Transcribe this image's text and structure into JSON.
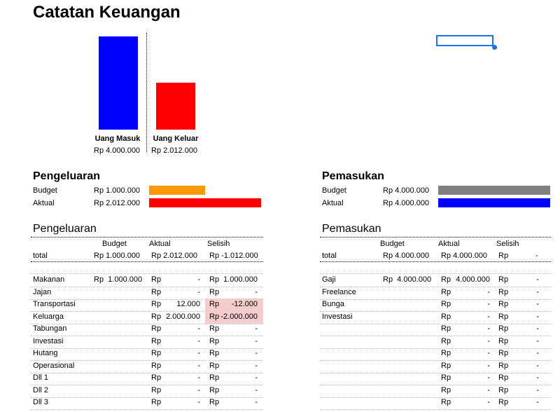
{
  "title": "Catatan Keuangan",
  "colors": {
    "uang_masuk": "#0000ff",
    "uang_keluar": "#ff0000",
    "budget_pengeluaran": "#ff9900",
    "aktual_pengeluaran": "#ff0000",
    "budget_pemasukan": "#808080",
    "aktual_pemasukan": "#0000ff",
    "negative_fill": "#f4cccc",
    "selection": "#1a73e8"
  },
  "summary": {
    "masuk_label": "Uang Masuk",
    "masuk_value": "Rp  4.000.000",
    "keluar_label": "Uang Keluar",
    "keluar_value": "Rp  2.012.000"
  },
  "chart_data": {
    "type": "bar",
    "categories": [
      "Uang Masuk",
      "Uang Keluar"
    ],
    "values": [
      4000000,
      2012000
    ]
  },
  "pengeluaran_summary": {
    "title": "Pengeluaran",
    "budget_label": "Budget",
    "budget_value": "Rp  1.000.000",
    "aktual_label": "Aktual",
    "aktual_value": "Rp  2.012.000",
    "budget_amount": 1000000,
    "aktual_amount": 2012000
  },
  "pemasukan_summary": {
    "title": "Pemasukan",
    "budget_label": "Budget",
    "budget_value": "Rp  4.000.000",
    "aktual_label": "Aktual",
    "aktual_value": "Rp  4.000.000",
    "budget_amount": 4000000,
    "aktual_amount": 4000000
  },
  "pengeluaran_table": {
    "title": "Pengeluaran",
    "headers": [
      "Budget",
      "Aktual",
      "Selisih"
    ],
    "total": {
      "label": "total",
      "budget": "Rp  1.000.000",
      "aktual": "Rp  2.012.000",
      "selisih": "Rp -1.012.000"
    },
    "rows": [
      {
        "label": "Makanan",
        "budget": "Rp  1.000.000",
        "aktual_rp": "Rp",
        "aktual": "-",
        "selisih_rp": "Rp",
        "selisih": "1.000.000",
        "neg": false
      },
      {
        "label": "Jajan",
        "budget": "",
        "aktual_rp": "Rp",
        "aktual": "-",
        "selisih_rp": "Rp",
        "selisih": "-",
        "neg": false
      },
      {
        "label": "Transportasi",
        "budget": "",
        "aktual_rp": "Rp",
        "aktual": "12.000",
        "selisih_rp": "Rp",
        "selisih": "-12.000",
        "neg": true
      },
      {
        "label": "Keluarga",
        "budget": "",
        "aktual_rp": "Rp",
        "aktual": "2.000.000",
        "selisih_rp": "Rp",
        "selisih": "-2.000.000",
        "neg": true
      },
      {
        "label": "Tabungan",
        "budget": "",
        "aktual_rp": "Rp",
        "aktual": "-",
        "selisih_rp": "Rp",
        "selisih": "-",
        "neg": false
      },
      {
        "label": "Investasi",
        "budget": "",
        "aktual_rp": "Rp",
        "aktual": "-",
        "selisih_rp": "Rp",
        "selisih": "-",
        "neg": false
      },
      {
        "label": "Hutang",
        "budget": "",
        "aktual_rp": "Rp",
        "aktual": "-",
        "selisih_rp": "Rp",
        "selisih": "-",
        "neg": false
      },
      {
        "label": "Operasional",
        "budget": "",
        "aktual_rp": "Rp",
        "aktual": "-",
        "selisih_rp": "Rp",
        "selisih": "-",
        "neg": false
      },
      {
        "label": "Dll 1",
        "budget": "",
        "aktual_rp": "Rp",
        "aktual": "-",
        "selisih_rp": "Rp",
        "selisih": "-",
        "neg": false
      },
      {
        "label": "Dll 2",
        "budget": "",
        "aktual_rp": "Rp",
        "aktual": "-",
        "selisih_rp": "Rp",
        "selisih": "-",
        "neg": false
      },
      {
        "label": "Dll 3",
        "budget": "",
        "aktual_rp": "Rp",
        "aktual": "-",
        "selisih_rp": "Rp",
        "selisih": "-",
        "neg": false
      }
    ]
  },
  "pemasukan_table": {
    "title": "Pemasukan",
    "headers": [
      "Budget",
      "Aktual",
      "Selisih"
    ],
    "total": {
      "label": "total",
      "budget": "Rp  4.000.000",
      "aktual": "Rp  4.000.000",
      "selisih_rp": "Rp",
      "selisih": "-"
    },
    "rows": [
      {
        "label": "Gaji",
        "budget": "Rp  4.000.000",
        "aktual_rp": "Rp",
        "aktual": "4.000.000",
        "selisih_rp": "Rp",
        "selisih": "-"
      },
      {
        "label": "Freelance",
        "budget": "",
        "aktual_rp": "Rp",
        "aktual": "-",
        "selisih_rp": "Rp",
        "selisih": "-"
      },
      {
        "label": "Bunga",
        "budget": "",
        "aktual_rp": "Rp",
        "aktual": "-",
        "selisih_rp": "Rp",
        "selisih": "-"
      },
      {
        "label": "Investasi",
        "budget": "",
        "aktual_rp": "Rp",
        "aktual": "-",
        "selisih_rp": "Rp",
        "selisih": "-"
      },
      {
        "label": "",
        "budget": "",
        "aktual_rp": "Rp",
        "aktual": "-",
        "selisih_rp": "Rp",
        "selisih": "-"
      },
      {
        "label": "",
        "budget": "",
        "aktual_rp": "Rp",
        "aktual": "-",
        "selisih_rp": "Rp",
        "selisih": "-"
      },
      {
        "label": "",
        "budget": "",
        "aktual_rp": "Rp",
        "aktual": "-",
        "selisih_rp": "Rp",
        "selisih": "-"
      },
      {
        "label": "",
        "budget": "",
        "aktual_rp": "Rp",
        "aktual": "-",
        "selisih_rp": "Rp",
        "selisih": "-"
      },
      {
        "label": "",
        "budget": "",
        "aktual_rp": "Rp",
        "aktual": "-",
        "selisih_rp": "Rp",
        "selisih": "-"
      },
      {
        "label": "",
        "budget": "",
        "aktual_rp": "Rp",
        "aktual": "-",
        "selisih_rp": "Rp",
        "selisih": "-"
      },
      {
        "label": "",
        "budget": "",
        "aktual_rp": "Rp",
        "aktual": "-",
        "selisih_rp": "Rp",
        "selisih": "-"
      }
    ]
  }
}
